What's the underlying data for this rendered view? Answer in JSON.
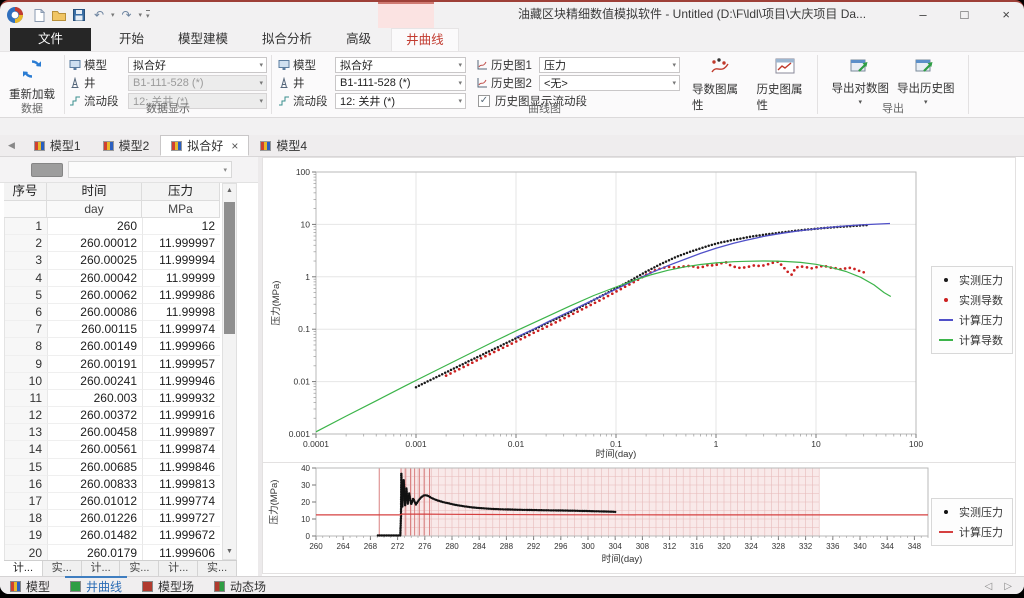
{
  "window": {
    "title": "油藏区块精细数值模拟软件 - Untitled (D:\\F\\ldl\\项目\\大庆项目 Da...",
    "minimize": "–",
    "maximize": "□",
    "close": "×"
  },
  "icons": {
    "chevron_down": "▾",
    "scroll_up": "▲",
    "scroll_down": "▼",
    "nav_left": "◁",
    "nav_right": "▷",
    "tab_scroll_left": "◀",
    "undo": "↶",
    "redo": "↷",
    "check": "✓",
    "close_tab": "×"
  },
  "colors": {
    "accent_red": "#c23b30",
    "accent_blue": "#2b6cb5",
    "measured_pressure": "#1a1a1a",
    "measured_derivative": "#cc2020",
    "calc_pressure_loglog": "#5050c8",
    "calc_derivative": "#3cb44a",
    "calc_pressure_history": "#d54040",
    "flow_shade": "#f6dddd"
  },
  "ribbon_tabs": [
    {
      "label": "文件",
      "file": true
    },
    {
      "label": "开始"
    },
    {
      "label": "模型建模"
    },
    {
      "label": "拟合分析"
    },
    {
      "label": "高级"
    },
    {
      "label": "井曲线",
      "active": true
    }
  ],
  "ribbon": {
    "reload_label": "重新加载",
    "group_data": "数据",
    "group_display": "数据显示",
    "group_curve": "曲线图",
    "group_export": "导出",
    "display": {
      "model_label": "模型",
      "model_value": "拟合好",
      "well_label": "井",
      "well_value": "B1-111-528 (*)",
      "segment_label": "流动段",
      "segment_value": "12: 关井 (*)"
    },
    "curve": {
      "model_label": "模型",
      "model_value": "拟合好",
      "well_label": "井",
      "well_value": "B1-111-528 (*)",
      "segment_label": "流动段",
      "segment_value": "12: 关井 (*)",
      "hist1_label": "历史图1",
      "hist1_value": "压力",
      "hist2_label": "历史图2",
      "hist2_value": "<无>",
      "checkbox_label": "历史图显示流动段",
      "checkbox_checked": true,
      "deriv_props": "导数图属性",
      "hist_props": "历史图属性"
    },
    "export": {
      "loglog": "导出对数图",
      "history": "导出历史图"
    }
  },
  "doc_tabs": [
    {
      "label": "模型1"
    },
    {
      "label": "模型2"
    },
    {
      "label": "拟合好",
      "active": true,
      "closable": true
    },
    {
      "label": "模型4"
    }
  ],
  "table": {
    "columns": [
      "序号",
      "时间",
      "压力"
    ],
    "units": [
      "",
      "day",
      "MPa"
    ],
    "rows": [
      [
        "1",
        "260",
        "12"
      ],
      [
        "2",
        "260.00012",
        "11.999997"
      ],
      [
        "3",
        "260.00025",
        "11.999994"
      ],
      [
        "4",
        "260.00042",
        "11.99999"
      ],
      [
        "5",
        "260.00062",
        "11.999986"
      ],
      [
        "6",
        "260.00086",
        "11.99998"
      ],
      [
        "7",
        "260.00115",
        "11.999974"
      ],
      [
        "8",
        "260.00149",
        "11.999966"
      ],
      [
        "9",
        "260.00191",
        "11.999957"
      ],
      [
        "10",
        "260.00241",
        "11.999946"
      ],
      [
        "11",
        "260.003",
        "11.999932"
      ],
      [
        "12",
        "260.00372",
        "11.999916"
      ],
      [
        "13",
        "260.00458",
        "11.999897"
      ],
      [
        "14",
        "260.00561",
        "11.999874"
      ],
      [
        "15",
        "260.00685",
        "11.999846"
      ],
      [
        "16",
        "260.00833",
        "11.999813"
      ],
      [
        "17",
        "260.01012",
        "11.999774"
      ],
      [
        "18",
        "260.01226",
        "11.999727"
      ],
      [
        "19",
        "260.01482",
        "11.999672"
      ],
      [
        "20",
        "260.0179",
        "11.999606"
      ],
      [
        "21",
        "260.02159",
        "11.999527"
      ]
    ],
    "sheet_tabs": [
      "计...",
      "实...",
      "计...",
      "实...",
      "计...",
      "实..."
    ]
  },
  "view_tabs": [
    {
      "label": "模型",
      "icon": "ic-model"
    },
    {
      "label": "井曲线",
      "icon": "ic-well",
      "active": true
    },
    {
      "label": "模型场",
      "icon": "ic-mfield"
    },
    {
      "label": "动态场",
      "icon": "ic-dfield"
    }
  ],
  "chart_data": [
    {
      "type": "scatter",
      "title": "",
      "xscale": "log",
      "yscale": "log",
      "xlim": [
        0.0001,
        100
      ],
      "ylim": [
        0.001,
        100
      ],
      "xticks": [
        "0.0001",
        "0.001",
        "0.01",
        "0.1",
        "1",
        "10",
        "100"
      ],
      "yticks": [
        "0.001",
        "0.01",
        "0.1",
        "1",
        "10",
        "100"
      ],
      "xlabel": "时间(day)",
      "ylabel": "压力(MPa)",
      "grid": true,
      "legend_position": "right",
      "series": [
        {
          "name": "实测压力",
          "type": "scatter",
          "color": "#1a1a1a",
          "dot_r": 1.25,
          "resample": 150,
          "points": [
            [
              0.001,
              0.0078
            ],
            [
              0.0015,
              0.0115
            ],
            [
              0.002,
              0.015
            ],
            [
              0.003,
              0.022
            ],
            [
              0.0045,
              0.032
            ],
            [
              0.007,
              0.048
            ],
            [
              0.01,
              0.067
            ],
            [
              0.015,
              0.098
            ],
            [
              0.022,
              0.14
            ],
            [
              0.033,
              0.2
            ],
            [
              0.05,
              0.3
            ],
            [
              0.07,
              0.42
            ],
            [
              0.1,
              0.6
            ],
            [
              0.14,
              0.85
            ],
            [
              0.2,
              1.25
            ],
            [
              0.28,
              1.75
            ],
            [
              0.4,
              2.4
            ],
            [
              0.55,
              3.0
            ],
            [
              0.8,
              3.8
            ],
            [
              1.1,
              4.5
            ],
            [
              1.6,
              5.2
            ],
            [
              2.2,
              5.8
            ],
            [
              3,
              6.35
            ],
            [
              4.2,
              6.9
            ],
            [
              6,
              7.5
            ],
            [
              8,
              7.95
            ],
            [
              11,
              8.4
            ],
            [
              15,
              8.8
            ],
            [
              20,
              9.15
            ],
            [
              26,
              9.45
            ],
            [
              32,
              9.7
            ]
          ]
        },
        {
          "name": "实测导数",
          "type": "scatter",
          "color": "#cc2020",
          "dot_r": 1.35,
          "resample": 95,
          "points": [
            [
              0.002,
              0.013
            ],
            [
              0.003,
              0.019
            ],
            [
              0.0045,
              0.028
            ],
            [
              0.007,
              0.042
            ],
            [
              0.01,
              0.058
            ],
            [
              0.015,
              0.085
            ],
            [
              0.022,
              0.12
            ],
            [
              0.033,
              0.175
            ],
            [
              0.05,
              0.26
            ],
            [
              0.07,
              0.36
            ],
            [
              0.1,
              0.52
            ],
            [
              0.13,
              0.68
            ],
            [
              0.17,
              0.9
            ],
            [
              0.2,
              1.1
            ],
            [
              0.24,
              1.3
            ],
            [
              0.28,
              1.45
            ],
            [
              0.33,
              1.55
            ],
            [
              0.4,
              1.5
            ],
            [
              0.48,
              1.58
            ],
            [
              0.56,
              1.62
            ],
            [
              0.65,
              1.5
            ],
            [
              0.75,
              1.55
            ],
            [
              0.85,
              1.7
            ],
            [
              0.95,
              1.62
            ],
            [
              1.1,
              1.8
            ],
            [
              1.25,
              1.9
            ],
            [
              1.4,
              1.65
            ],
            [
              1.6,
              1.5
            ],
            [
              1.8,
              1.48
            ],
            [
              2.1,
              1.55
            ],
            [
              2.4,
              1.65
            ],
            [
              2.8,
              1.6
            ],
            [
              3.2,
              1.7
            ],
            [
              3.7,
              1.85
            ],
            [
              4.2,
              1.95
            ],
            [
              4.7,
              1.55
            ],
            [
              5.2,
              1.25
            ],
            [
              5.7,
              1.1
            ],
            [
              6.3,
              1.5
            ],
            [
              7,
              1.58
            ],
            [
              8,
              1.52
            ],
            [
              9,
              1.45
            ],
            [
              10.5,
              1.55
            ],
            [
              12,
              1.62
            ],
            [
              14,
              1.5
            ],
            [
              16,
              1.45
            ],
            [
              18,
              1.38
            ],
            [
              21,
              1.5
            ],
            [
              24,
              1.42
            ],
            [
              27,
              1.3
            ],
            [
              30,
              1.22
            ]
          ]
        },
        {
          "name": "计算压力",
          "type": "line",
          "color": "#5050c8",
          "width": 1.3,
          "points": [
            [
              0.01,
              0.07
            ],
            [
              0.015,
              0.1
            ],
            [
              0.022,
              0.145
            ],
            [
              0.033,
              0.21
            ],
            [
              0.05,
              0.31
            ],
            [
              0.07,
              0.42
            ],
            [
              0.1,
              0.58
            ],
            [
              0.15,
              0.84
            ],
            [
              0.22,
              1.17
            ],
            [
              0.33,
              1.63
            ],
            [
              0.5,
              2.2
            ],
            [
              0.7,
              2.8
            ],
            [
              1,
              3.5
            ],
            [
              1.5,
              4.35
            ],
            [
              2,
              5.0
            ],
            [
              3,
              5.9
            ],
            [
              4,
              6.5
            ],
            [
              5,
              6.95
            ],
            [
              7,
              7.6
            ],
            [
              10,
              8.25
            ],
            [
              14,
              8.8
            ],
            [
              20,
              9.35
            ],
            [
              28,
              9.8
            ],
            [
              40,
              10.15
            ],
            [
              55,
              10.4
            ]
          ]
        },
        {
          "name": "计算导数",
          "type": "line",
          "color": "#3cb44a",
          "width": 1.2,
          "points": [
            [
              0.0001,
              0.0011
            ],
            [
              0.0002,
              0.0022
            ],
            [
              0.0004,
              0.0043
            ],
            [
              0.0008,
              0.0085
            ],
            [
              0.0015,
              0.0155
            ],
            [
              0.003,
              0.03
            ],
            [
              0.006,
              0.058
            ],
            [
              0.01,
              0.093
            ],
            [
              0.02,
              0.17
            ],
            [
              0.035,
              0.28
            ],
            [
              0.06,
              0.44
            ],
            [
              0.1,
              0.64
            ],
            [
              0.15,
              0.85
            ],
            [
              0.22,
              1.08
            ],
            [
              0.33,
              1.33
            ],
            [
              0.5,
              1.56
            ],
            [
              0.7,
              1.72
            ],
            [
              1,
              1.84
            ],
            [
              1.5,
              1.94
            ],
            [
              2,
              1.98
            ],
            [
              3,
              2.0
            ],
            [
              4,
              1.99
            ],
            [
              5,
              1.96
            ],
            [
              7,
              1.88
            ],
            [
              10,
              1.73
            ],
            [
              14,
              1.52
            ],
            [
              20,
              1.26
            ],
            [
              28,
              0.98
            ],
            [
              38,
              0.7
            ],
            [
              48,
              0.5
            ],
            [
              56,
              0.42
            ]
          ]
        }
      ]
    },
    {
      "type": "scatter",
      "title": "",
      "xscale": "linear",
      "yscale": "linear",
      "xlim": [
        260,
        350
      ],
      "ylim": [
        0,
        40
      ],
      "xticks": [
        260,
        264,
        268,
        272,
        276,
        280,
        284,
        288,
        292,
        296,
        300,
        304,
        308,
        312,
        316,
        320,
        324,
        328,
        332,
        336,
        340,
        344,
        348
      ],
      "yticks": [
        0,
        10,
        20,
        30,
        40
      ],
      "xlabel": "时间(day)",
      "ylabel": "压力(MPa)",
      "grid": false,
      "legend_position": "right",
      "flow_periods": {
        "shade_start": 272.5,
        "shade_end": 334,
        "fine_grid_step": 1,
        "boundary_lines": [
          269.3,
          272.5,
          273.2,
          273.9,
          274.5,
          275.2,
          275.9,
          276.7
        ]
      },
      "series": [
        {
          "name": "实测压力",
          "type": "scatter",
          "color": "#111111",
          "dot_r": 1.2,
          "resample": 260,
          "points": [
            [
              269.1,
              0.3
            ],
            [
              272.4,
              0.3
            ],
            [
              272.5,
              12
            ],
            [
              272.55,
              37
            ],
            [
              272.7,
              17
            ],
            [
              272.9,
              33
            ],
            [
              273.1,
              18
            ],
            [
              273.3,
              28
            ],
            [
              273.5,
              19
            ],
            [
              273.7,
              25
            ],
            [
              274,
              18.5
            ],
            [
              274.3,
              22
            ],
            [
              274.7,
              18.5
            ],
            [
              275,
              20.5
            ],
            [
              275.4,
              22.5
            ],
            [
              275.9,
              24
            ],
            [
              276.4,
              23.8
            ],
            [
              277,
              22.3
            ],
            [
              277.8,
              21
            ],
            [
              278.6,
              20
            ],
            [
              279.5,
              19.2
            ],
            [
              280.5,
              18.3
            ],
            [
              281.7,
              17.5
            ],
            [
              283,
              16.8
            ],
            [
              284.5,
              16.3
            ],
            [
              286,
              15.9
            ],
            [
              288,
              15.6
            ],
            [
              290,
              15.4
            ],
            [
              292.5,
              15.2
            ],
            [
              295,
              15.05
            ],
            [
              298,
              14.85
            ],
            [
              300.5,
              14.6
            ],
            [
              302.5,
              14.4
            ],
            [
              304,
              14.2
            ]
          ]
        },
        {
          "name": "计算压力",
          "type": "line",
          "color": "#d54040",
          "width": 1.2,
          "points": [
            [
              260,
              12.4
            ],
            [
              272.4,
              12.4
            ],
            [
              272.6,
              12.9
            ],
            [
              276,
              12.9
            ],
            [
              280,
              12.75
            ],
            [
              286,
              12.65
            ],
            [
              292,
              12.55
            ],
            [
              298,
              12.5
            ],
            [
              304,
              12.45
            ],
            [
              312,
              12.4
            ],
            [
              350,
              12.4
            ]
          ]
        }
      ]
    }
  ]
}
